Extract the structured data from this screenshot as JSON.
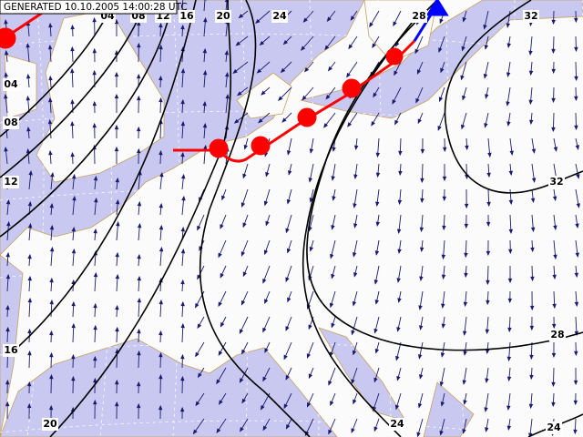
{
  "header": {
    "title": "GENERATED 10.10.2005 14:00:28 UTC"
  },
  "isobar_labels": [
    "04",
    "08",
    "12",
    "16",
    "20",
    "24",
    "28",
    "32",
    "04",
    "08",
    "12",
    "16",
    "20",
    "24",
    "32",
    "28",
    "24"
  ]
}
